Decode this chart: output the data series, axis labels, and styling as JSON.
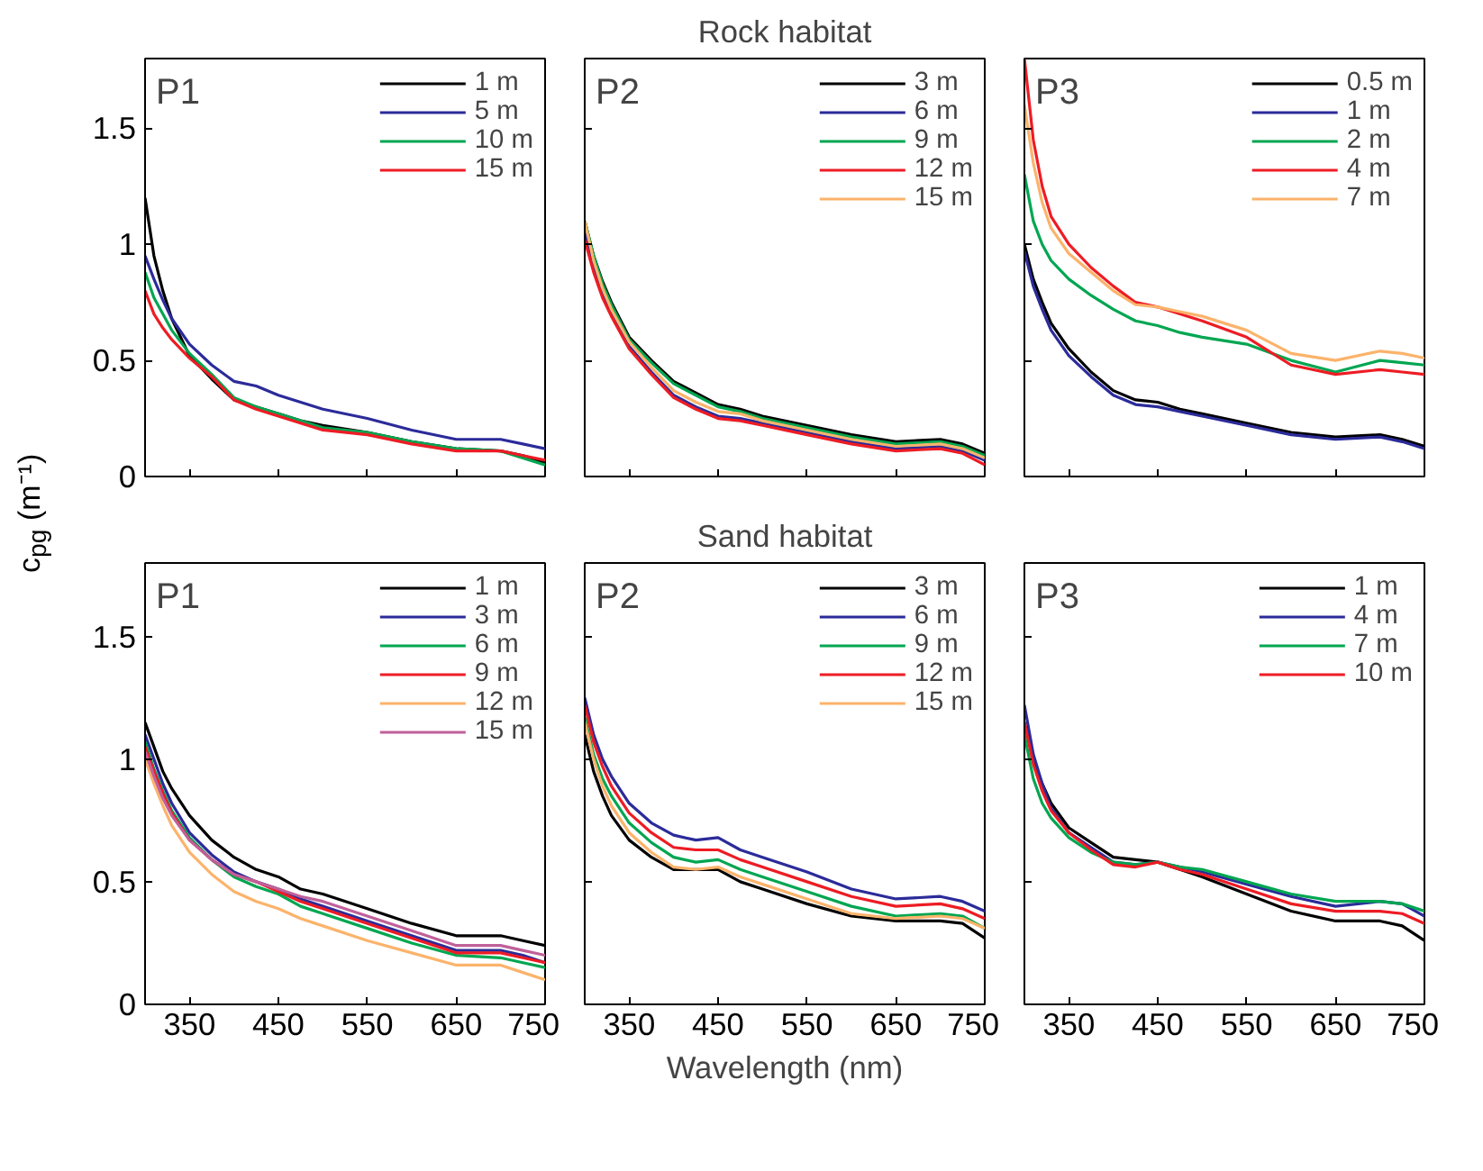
{
  "chart_data": [
    {
      "type": "line",
      "annotations": [
        "P1"
      ],
      "x": [
        300,
        310,
        320,
        330,
        350,
        375,
        400,
        425,
        450,
        475,
        500,
        550,
        600,
        650,
        700,
        725,
        750
      ],
      "xlim": [
        300,
        750
      ],
      "xticks": [
        350,
        450,
        550,
        650,
        750
      ],
      "ylim": [
        0,
        1.8
      ],
      "yticks": [
        0,
        0.5,
        1,
        1.5
      ],
      "tick_labels": "y",
      "grid": false,
      "legend": "top right",
      "series": [
        {
          "name": "1 m",
          "color": "#000000",
          "values": [
            1.2,
            0.95,
            0.8,
            0.68,
            0.52,
            0.42,
            0.33,
            0.3,
            0.27,
            0.24,
            0.22,
            0.19,
            0.15,
            0.12,
            0.11,
            0.09,
            0.06
          ]
        },
        {
          "name": "5 m",
          "color": "#2b2b9a",
          "values": [
            0.95,
            0.85,
            0.76,
            0.68,
            0.57,
            0.48,
            0.41,
            0.39,
            0.35,
            0.32,
            0.29,
            0.25,
            0.2,
            0.16,
            0.16,
            0.14,
            0.12
          ]
        },
        {
          "name": "10 m",
          "color": "#00a651",
          "values": [
            0.88,
            0.77,
            0.7,
            0.63,
            0.53,
            0.44,
            0.34,
            0.3,
            0.27,
            0.24,
            0.21,
            0.19,
            0.15,
            0.12,
            0.11,
            0.08,
            0.05
          ]
        },
        {
          "name": "15 m",
          "color": "#ed1c24",
          "values": [
            0.8,
            0.7,
            0.64,
            0.59,
            0.51,
            0.43,
            0.33,
            0.29,
            0.26,
            0.23,
            0.2,
            0.18,
            0.14,
            0.11,
            0.11,
            0.09,
            0.07
          ]
        }
      ]
    },
    {
      "type": "line",
      "title": "Rock habitat",
      "annotations": [
        "P2"
      ],
      "x": [
        300,
        310,
        320,
        330,
        350,
        375,
        400,
        425,
        450,
        475,
        500,
        550,
        600,
        650,
        700,
        725,
        750
      ],
      "xlim": [
        300,
        750
      ],
      "xticks": [
        350,
        450,
        550,
        650,
        750
      ],
      "ylim": [
        0,
        1.8
      ],
      "yticks": [
        0,
        0.5,
        1,
        1.5
      ],
      "tick_labels": false,
      "grid": false,
      "legend": "top right",
      "series": [
        {
          "name": "3 m",
          "color": "#000000",
          "values": [
            1.1,
            0.95,
            0.84,
            0.75,
            0.6,
            0.5,
            0.41,
            0.36,
            0.31,
            0.29,
            0.26,
            0.22,
            0.18,
            0.15,
            0.16,
            0.14,
            0.1
          ]
        },
        {
          "name": "6 m",
          "color": "#2b2b9a",
          "values": [
            1.05,
            0.9,
            0.78,
            0.7,
            0.56,
            0.45,
            0.35,
            0.3,
            0.26,
            0.25,
            0.23,
            0.19,
            0.15,
            0.12,
            0.13,
            0.11,
            0.07
          ]
        },
        {
          "name": "9 m",
          "color": "#00a651",
          "values": [
            1.1,
            0.95,
            0.83,
            0.74,
            0.59,
            0.49,
            0.4,
            0.35,
            0.3,
            0.28,
            0.25,
            0.21,
            0.17,
            0.14,
            0.15,
            0.13,
            0.09
          ]
        },
        {
          "name": "12 m",
          "color": "#ed1c24",
          "values": [
            1.02,
            0.88,
            0.77,
            0.69,
            0.55,
            0.44,
            0.34,
            0.29,
            0.25,
            0.24,
            0.22,
            0.18,
            0.14,
            0.11,
            0.12,
            0.1,
            0.05
          ]
        },
        {
          "name": "15 m",
          "color": "#fbb36b",
          "values": [
            1.1,
            0.93,
            0.81,
            0.72,
            0.58,
            0.47,
            0.37,
            0.32,
            0.28,
            0.27,
            0.24,
            0.2,
            0.16,
            0.13,
            0.14,
            0.12,
            0.08
          ]
        }
      ]
    },
    {
      "type": "line",
      "annotations": [
        "P3"
      ],
      "x": [
        300,
        310,
        320,
        330,
        350,
        375,
        400,
        425,
        450,
        475,
        500,
        550,
        600,
        650,
        700,
        725,
        750
      ],
      "xlim": [
        300,
        750
      ],
      "xticks": [
        350,
        450,
        550,
        650,
        750
      ],
      "ylim": [
        0,
        1.8
      ],
      "yticks": [
        0,
        0.5,
        1,
        1.5
      ],
      "tick_labels": false,
      "grid": false,
      "legend": "top right",
      "series": [
        {
          "name": "0.5 m",
          "color": "#000000",
          "values": [
            1.0,
            0.85,
            0.75,
            0.66,
            0.55,
            0.45,
            0.37,
            0.33,
            0.32,
            0.29,
            0.27,
            0.23,
            0.19,
            0.17,
            0.18,
            0.16,
            0.13
          ]
        },
        {
          "name": "1 m",
          "color": "#2b2b9a",
          "values": [
            0.97,
            0.82,
            0.72,
            0.63,
            0.52,
            0.43,
            0.35,
            0.31,
            0.3,
            0.28,
            0.26,
            0.22,
            0.18,
            0.16,
            0.17,
            0.15,
            0.12
          ]
        },
        {
          "name": "2 m",
          "color": "#00a651",
          "values": [
            1.3,
            1.1,
            1.0,
            0.93,
            0.85,
            0.78,
            0.72,
            0.67,
            0.65,
            0.62,
            0.6,
            0.57,
            0.5,
            0.45,
            0.5,
            0.49,
            0.48
          ]
        },
        {
          "name": "4 m",
          "color": "#ed1c24",
          "values": [
            1.8,
            1.45,
            1.25,
            1.12,
            1.0,
            0.9,
            0.82,
            0.75,
            0.73,
            0.7,
            0.67,
            0.6,
            0.48,
            0.44,
            0.46,
            0.45,
            0.44
          ]
        },
        {
          "name": "7 m",
          "color": "#fbb36b",
          "values": [
            1.6,
            1.35,
            1.18,
            1.07,
            0.96,
            0.88,
            0.8,
            0.74,
            0.73,
            0.71,
            0.69,
            0.63,
            0.53,
            0.5,
            0.54,
            0.53,
            0.51
          ]
        }
      ]
    },
    {
      "type": "line",
      "ylabel": "c$_{pg}$ (m⁻¹)",
      "annotations": [
        "P1"
      ],
      "x": [
        300,
        310,
        320,
        330,
        350,
        375,
        400,
        425,
        450,
        475,
        500,
        550,
        600,
        650,
        700,
        725,
        750
      ],
      "xlim": [
        300,
        750
      ],
      "xticks": [
        350,
        450,
        550,
        650,
        750
      ],
      "ylim": [
        0,
        1.8
      ],
      "yticks": [
        0,
        0.5,
        1,
        1.5
      ],
      "grid": false,
      "legend": "top right",
      "series": [
        {
          "name": "1 m",
          "color": "#000000",
          "values": [
            1.15,
            1.05,
            0.95,
            0.88,
            0.77,
            0.67,
            0.6,
            0.55,
            0.52,
            0.47,
            0.45,
            0.39,
            0.33,
            0.28,
            0.28,
            0.26,
            0.24
          ]
        },
        {
          "name": "3 m",
          "color": "#2b2b9a",
          "values": [
            1.1,
            1.0,
            0.9,
            0.82,
            0.7,
            0.61,
            0.54,
            0.5,
            0.47,
            0.43,
            0.4,
            0.34,
            0.28,
            0.22,
            0.22,
            0.2,
            0.17
          ]
        },
        {
          "name": "6 m",
          "color": "#00a651",
          "values": [
            1.07,
            0.96,
            0.87,
            0.79,
            0.68,
            0.59,
            0.52,
            0.48,
            0.45,
            0.4,
            0.37,
            0.31,
            0.25,
            0.2,
            0.19,
            0.17,
            0.15
          ]
        },
        {
          "name": "9 m",
          "color": "#ed1c24",
          "values": [
            1.05,
            0.95,
            0.86,
            0.78,
            0.67,
            0.59,
            0.53,
            0.5,
            0.46,
            0.42,
            0.39,
            0.33,
            0.27,
            0.21,
            0.21,
            0.19,
            0.17
          ]
        },
        {
          "name": "12 m",
          "color": "#fbb36b",
          "values": [
            1.0,
            0.9,
            0.81,
            0.73,
            0.62,
            0.53,
            0.46,
            0.42,
            0.39,
            0.35,
            0.32,
            0.26,
            0.21,
            0.16,
            0.16,
            0.13,
            0.1
          ]
        },
        {
          "name": "15 m",
          "color": "#c0609a",
          "values": [
            1.03,
            0.93,
            0.84,
            0.77,
            0.67,
            0.59,
            0.53,
            0.5,
            0.47,
            0.44,
            0.42,
            0.36,
            0.3,
            0.24,
            0.24,
            0.22,
            0.2
          ]
        }
      ]
    },
    {
      "type": "line",
      "title": "Sand habitat",
      "xlabel": "Wavelength (nm)",
      "annotations": [
        "P2"
      ],
      "x": [
        300,
        310,
        320,
        330,
        350,
        375,
        400,
        425,
        450,
        475,
        500,
        550,
        600,
        650,
        700,
        725,
        750
      ],
      "xlim": [
        300,
        750
      ],
      "xticks": [
        350,
        450,
        550,
        650,
        750
      ],
      "ylim": [
        0,
        1.8
      ],
      "yticks": [
        0,
        0.5,
        1,
        1.5
      ],
      "tick_labels": "x",
      "grid": false,
      "legend": "top right",
      "series": [
        {
          "name": "3 m",
          "color": "#000000",
          "values": [
            1.1,
            0.95,
            0.85,
            0.77,
            0.67,
            0.6,
            0.55,
            0.55,
            0.55,
            0.5,
            0.47,
            0.41,
            0.36,
            0.34,
            0.34,
            0.33,
            0.27
          ]
        },
        {
          "name": "6 m",
          "color": "#2b2b9a",
          "values": [
            1.25,
            1.1,
            1.0,
            0.93,
            0.82,
            0.74,
            0.69,
            0.67,
            0.68,
            0.63,
            0.6,
            0.54,
            0.47,
            0.43,
            0.44,
            0.42,
            0.38
          ]
        },
        {
          "name": "9 m",
          "color": "#00a651",
          "values": [
            1.17,
            1.02,
            0.92,
            0.85,
            0.74,
            0.66,
            0.6,
            0.58,
            0.59,
            0.55,
            0.52,
            0.46,
            0.4,
            0.36,
            0.37,
            0.36,
            0.31
          ]
        },
        {
          "name": "12 m",
          "color": "#ed1c24",
          "values": [
            1.22,
            1.07,
            0.97,
            0.89,
            0.78,
            0.7,
            0.64,
            0.63,
            0.63,
            0.59,
            0.56,
            0.5,
            0.44,
            0.4,
            0.41,
            0.39,
            0.35
          ]
        },
        {
          "name": "15 m",
          "color": "#fbb36b",
          "values": [
            1.15,
            1.0,
            0.89,
            0.81,
            0.7,
            0.62,
            0.56,
            0.55,
            0.56,
            0.52,
            0.49,
            0.43,
            0.37,
            0.35,
            0.36,
            0.35,
            0.31
          ]
        }
      ]
    },
    {
      "type": "line",
      "annotations": [
        "P3"
      ],
      "x": [
        300,
        310,
        320,
        330,
        350,
        375,
        400,
        425,
        450,
        475,
        500,
        550,
        600,
        650,
        700,
        725,
        750
      ],
      "xlim": [
        300,
        750
      ],
      "xticks": [
        350,
        450,
        550,
        650,
        750
      ],
      "ylim": [
        0,
        1.8
      ],
      "yticks": [
        0,
        0.5,
        1,
        1.5
      ],
      "tick_labels": "x",
      "grid": false,
      "legend": "top right",
      "series": [
        {
          "name": "1 m",
          "color": "#000000",
          "values": [
            1.15,
            1.0,
            0.9,
            0.82,
            0.72,
            0.66,
            0.6,
            0.59,
            0.58,
            0.55,
            0.52,
            0.45,
            0.38,
            0.34,
            0.34,
            0.32,
            0.26
          ]
        },
        {
          "name": "4 m",
          "color": "#2b2b9a",
          "values": [
            1.22,
            1.02,
            0.9,
            0.8,
            0.7,
            0.64,
            0.58,
            0.57,
            0.58,
            0.56,
            0.54,
            0.49,
            0.44,
            0.4,
            0.42,
            0.41,
            0.36
          ]
        },
        {
          "name": "7 m",
          "color": "#00a651",
          "values": [
            1.1,
            0.92,
            0.82,
            0.76,
            0.68,
            0.62,
            0.58,
            0.57,
            0.58,
            0.56,
            0.55,
            0.5,
            0.45,
            0.42,
            0.42,
            0.41,
            0.38
          ]
        },
        {
          "name": "10 m",
          "color": "#ed1c24",
          "values": [
            1.15,
            0.98,
            0.87,
            0.79,
            0.7,
            0.63,
            0.57,
            0.56,
            0.58,
            0.55,
            0.53,
            0.47,
            0.41,
            0.38,
            0.38,
            0.37,
            0.33
          ]
        }
      ]
    }
  ]
}
